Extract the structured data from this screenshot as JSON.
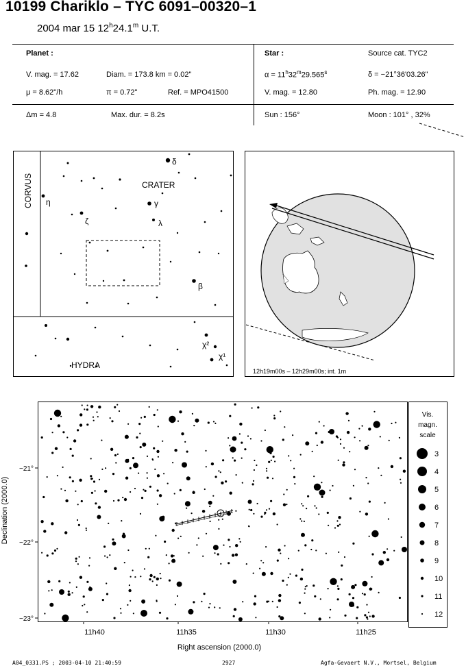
{
  "header": {
    "title": "10199 Chariklo  –  TYC 6091–00320–1",
    "date_text": "2004 mar 15  12",
    "date_h": "h",
    "date_min": "24.1",
    "date_m": "m",
    "date_ut": " U.T."
  },
  "planet": {
    "heading": "Planet :",
    "vmag": "V. mag. = 17.62",
    "diam": "Diam. = 173.8 km = 0.02\"",
    "mu": "μ =  8.62\"/h",
    "pi": "π =  0.72\"",
    "ref": "Ref. = MPO41500",
    "dm": "Δm = 4.8",
    "maxdur": "Max. dur. = 8.2s"
  },
  "star": {
    "heading": "Star :",
    "source": "Source cat.  TYC2",
    "alpha_a": "α = 11",
    "alpha_h": "h",
    "alpha_b": "32",
    "alpha_m": "m",
    "alpha_c": "29.565",
    "alpha_s": "s",
    "delta": "δ = −21°36'03.26\"",
    "vmag": "V. mag. = 12.80",
    "phmag": "Ph. mag. = 12.90",
    "sun": "Sun : 156°",
    "moon": "Moon : 101° , 32%"
  },
  "finder": {
    "constellations": [
      "CORVUS",
      "CRATER",
      "HYDRA"
    ],
    "stars": [
      {
        "label": "δ"
      },
      {
        "label": "η"
      },
      {
        "label": "γ"
      },
      {
        "label": "ζ"
      },
      {
        "label": "λ"
      },
      {
        "label": "β"
      },
      {
        "label": "χ²"
      },
      {
        "label": "χ¹"
      }
    ]
  },
  "globe": {
    "caption": "12h19m00s – 12h29m00s; int.  1m"
  },
  "chart": {
    "xlabel": "Right ascension (2000.0)",
    "ylabel": "Declination (2000.0)",
    "xticks": [
      "11h40",
      "11h35",
      "11h30",
      "11h25"
    ],
    "yticks": [
      "−21°",
      "−22°",
      "−23°"
    ]
  },
  "legend": {
    "title1": "Vis.",
    "title2": "magn.",
    "title3": "scale",
    "mags": [
      "3",
      "4",
      "5",
      "6",
      "7",
      "8",
      "9",
      "10",
      "11",
      "12"
    ]
  },
  "footer": {
    "left": "A04_0331.PS ; 2003-04-10 21:40:59",
    "center": "2927",
    "right": "Agfa-Gevaert N.V., Mortsel, Belgium"
  }
}
